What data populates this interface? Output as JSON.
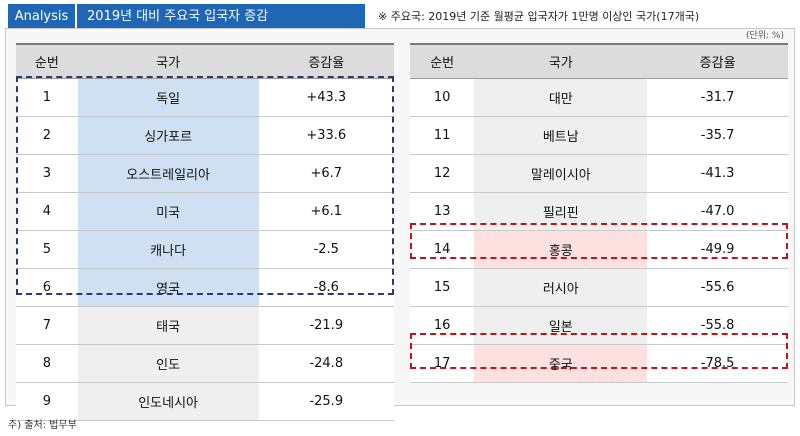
{
  "header": {
    "badge": "Analysis",
    "title": "2019년 대비 주요국 입국자 증감",
    "note": "※ 주요국: 2019년 기준 월평균 입국자가 1만명 이상인 국가(17개국)",
    "unit": "(단위: %)"
  },
  "columns": {
    "rank": "순번",
    "country": "국가",
    "rate": "증감율"
  },
  "left_table": [
    {
      "rank": "1",
      "country": "독일",
      "rate": "+43.3"
    },
    {
      "rank": "2",
      "country": "싱가포르",
      "rate": "+33.6"
    },
    {
      "rank": "3",
      "country": "오스트레일리아",
      "rate": "+6.7"
    },
    {
      "rank": "4",
      "country": "미국",
      "rate": "+6.1"
    },
    {
      "rank": "5",
      "country": "캐나다",
      "rate": "-2.5"
    },
    {
      "rank": "6",
      "country": "영국",
      "rate": "-8.6"
    },
    {
      "rank": "7",
      "country": "태국",
      "rate": "-21.9"
    },
    {
      "rank": "8",
      "country": "인도",
      "rate": "-24.8"
    },
    {
      "rank": "9",
      "country": "인도네시아",
      "rate": "-25.9"
    }
  ],
  "right_table": [
    {
      "rank": "10",
      "country": "대만",
      "rate": "-31.7"
    },
    {
      "rank": "11",
      "country": "베트남",
      "rate": "-35.7"
    },
    {
      "rank": "12",
      "country": "말레이시아",
      "rate": "-41.3"
    },
    {
      "rank": "13",
      "country": "필리핀",
      "rate": "-47.0"
    },
    {
      "rank": "14",
      "country": "홍콩",
      "rate": "-49.9"
    },
    {
      "rank": "15",
      "country": "러시아",
      "rate": "-55.6"
    },
    {
      "rank": "16",
      "country": "일본",
      "rate": "-55.8"
    },
    {
      "rank": "17",
      "country": "중국",
      "rate": "-78.5"
    }
  ],
  "highlight": {
    "blue": "#cfe0f2",
    "pink": "#fde1e1",
    "header_blue": "#1f66b5"
  },
  "source": "주) 출처: 법무부"
}
